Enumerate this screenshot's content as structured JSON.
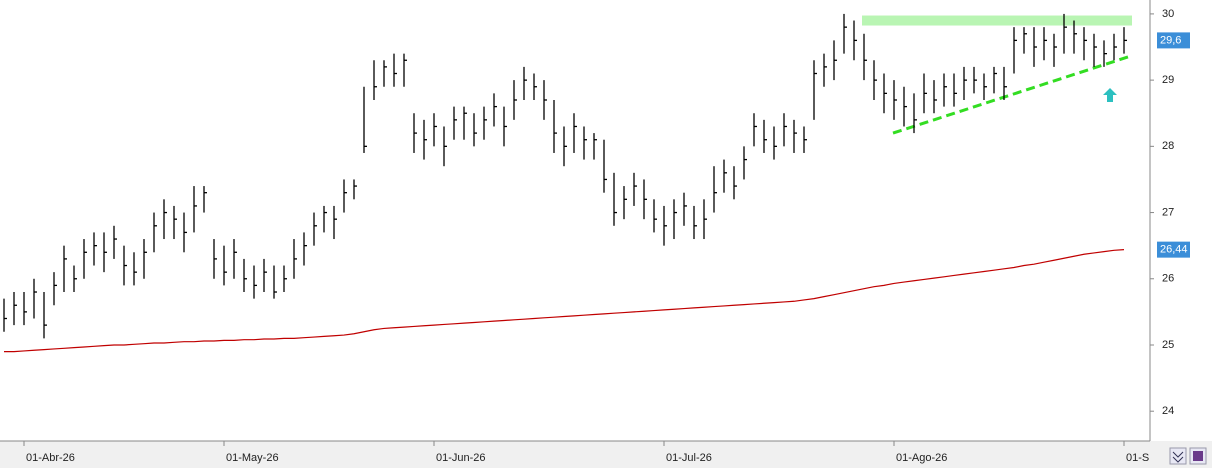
{
  "chart_data": {
    "type": "ohlc",
    "categories": [
      null,
      null,
      "01-Abr-26",
      null,
      null,
      null,
      null,
      null,
      null,
      null,
      null,
      null,
      null,
      null,
      null,
      null,
      null,
      null,
      null,
      null,
      null,
      null,
      "01-May-26",
      null,
      null,
      null,
      null,
      null,
      null,
      null,
      null,
      null,
      null,
      null,
      null,
      null,
      null,
      null,
      null,
      null,
      null,
      null,
      null,
      "01-Jun-26",
      null,
      null,
      null,
      null,
      null,
      null,
      null,
      null,
      null,
      null,
      null,
      null,
      null,
      null,
      null,
      null,
      null,
      null,
      null,
      null,
      null,
      null,
      "01-Jul-26",
      null,
      null,
      null,
      null,
      null,
      null,
      null,
      null,
      null,
      null,
      null,
      null,
      null,
      null,
      null,
      null,
      null,
      null,
      null,
      null,
      null,
      null,
      "01-Ago-26",
      null,
      null,
      null,
      null,
      null,
      null,
      null,
      null,
      null,
      null,
      null,
      null,
      null,
      null,
      null,
      null,
      null,
      null,
      null,
      null,
      null,
      null,
      "01-S"
    ],
    "high": [
      25.7,
      25.8,
      25.8,
      26.0,
      25.8,
      26.1,
      26.5,
      26.2,
      26.6,
      26.7,
      26.7,
      26.8,
      26.5,
      26.4,
      26.6,
      27.0,
      27.2,
      27.1,
      27.0,
      27.4,
      27.4,
      26.6,
      26.5,
      26.6,
      26.3,
      26.2,
      26.3,
      26.2,
      26.2,
      26.6,
      26.7,
      27.0,
      27.1,
      27.1,
      27.5,
      27.5,
      28.9,
      29.3,
      29.3,
      29.4,
      29.4,
      28.5,
      28.4,
      28.5,
      28.3,
      28.6,
      28.6,
      28.5,
      28.6,
      28.8,
      28.6,
      29.0,
      29.2,
      29.1,
      29.0,
      28.7,
      28.3,
      28.5,
      28.3,
      28.2,
      28.1,
      27.6,
      27.4,
      27.6,
      27.5,
      27.2,
      27.1,
      27.2,
      27.3,
      27.1,
      27.2,
      27.7,
      27.8,
      27.7,
      28.0,
      28.5,
      28.4,
      28.3,
      28.5,
      28.4,
      28.3,
      29.3,
      29.4,
      29.6,
      30.0,
      29.9,
      29.7,
      29.3,
      29.1,
      29.0,
      28.9,
      28.8,
      29.1,
      29.0,
      29.1,
      29.1,
      29.2,
      29.2,
      29.1,
      29.2,
      29.2,
      29.8,
      29.8,
      29.8,
      29.8,
      29.7,
      30.0,
      29.9,
      29.8,
      29.7,
      29.6,
      29.7,
      29.8
    ],
    "low": [
      25.2,
      25.3,
      25.3,
      25.4,
      25.1,
      25.6,
      25.8,
      25.8,
      26.0,
      26.2,
      26.1,
      26.3,
      25.9,
      25.9,
      26.0,
      26.4,
      26.6,
      26.6,
      26.4,
      26.7,
      27.0,
      26.0,
      25.9,
      26.0,
      25.8,
      25.7,
      25.8,
      25.7,
      25.8,
      26.0,
      26.2,
      26.5,
      26.7,
      26.6,
      27.0,
      27.2,
      27.9,
      28.7,
      28.9,
      28.9,
      28.9,
      27.9,
      27.8,
      28.0,
      27.7,
      28.1,
      28.1,
      28.0,
      28.1,
      28.3,
      28.0,
      28.4,
      28.7,
      28.7,
      28.4,
      27.9,
      27.7,
      27.9,
      27.8,
      27.8,
      27.3,
      26.8,
      26.9,
      27.1,
      26.9,
      26.7,
      26.5,
      26.6,
      26.8,
      26.6,
      26.6,
      27.0,
      27.3,
      27.2,
      27.5,
      28.0,
      27.9,
      27.8,
      28.0,
      27.9,
      27.9,
      28.4,
      28.9,
      29.0,
      29.4,
      29.3,
      29.0,
      28.7,
      28.5,
      28.4,
      28.3,
      28.2,
      28.5,
      28.5,
      28.6,
      28.6,
      28.7,
      28.8,
      28.7,
      28.8,
      28.7,
      29.1,
      29.4,
      29.2,
      29.3,
      29.2,
      29.4,
      29.4,
      29.3,
      29.2,
      29.2,
      29.3,
      29.4
    ],
    "close": [
      25.4,
      25.6,
      25.5,
      25.8,
      25.3,
      25.9,
      26.3,
      26.0,
      26.4,
      26.5,
      26.4,
      26.6,
      26.2,
      26.1,
      26.4,
      26.8,
      27.0,
      26.9,
      26.7,
      27.1,
      27.3,
      26.3,
      26.1,
      26.4,
      26.0,
      25.9,
      26.1,
      25.8,
      26.0,
      26.3,
      26.5,
      26.8,
      27.0,
      26.9,
      27.3,
      27.4,
      28.0,
      28.9,
      29.2,
      29.1,
      29.3,
      28.2,
      28.1,
      28.3,
      28.0,
      28.4,
      28.5,
      28.2,
      28.4,
      28.6,
      28.3,
      28.7,
      29.0,
      28.9,
      28.7,
      28.2,
      28.0,
      28.3,
      28.1,
      28.1,
      27.5,
      27.0,
      27.2,
      27.4,
      27.2,
      26.9,
      26.8,
      27.0,
      27.1,
      26.8,
      26.9,
      27.3,
      27.6,
      27.4,
      27.8,
      28.3,
      28.1,
      28.0,
      28.3,
      28.2,
      28.1,
      29.1,
      29.2,
      29.3,
      29.8,
      29.6,
      29.3,
      29.0,
      28.8,
      28.7,
      28.6,
      28.4,
      28.8,
      28.7,
      28.9,
      28.8,
      29.0,
      29.0,
      28.9,
      29.1,
      28.9,
      29.6,
      29.7,
      29.5,
      29.6,
      29.5,
      29.8,
      29.7,
      29.6,
      29.5,
      29.4,
      29.5,
      29.6
    ],
    "color": "#000000",
    "last_label": "29,6",
    "label_color": "#3b8ed8",
    "overlay": {
      "type": "line",
      "color": "#c00000",
      "last_label": "26,44",
      "values": [
        24.9,
        24.9,
        24.91,
        24.92,
        24.93,
        24.94,
        24.95,
        24.96,
        24.97,
        24.98,
        24.99,
        25.0,
        25.0,
        25.01,
        25.02,
        25.03,
        25.03,
        25.04,
        25.05,
        25.05,
        25.06,
        25.06,
        25.07,
        25.07,
        25.08,
        25.08,
        25.09,
        25.09,
        25.1,
        25.1,
        25.11,
        25.12,
        25.13,
        25.14,
        25.15,
        25.17,
        25.2,
        25.23,
        25.25,
        25.26,
        25.27,
        25.28,
        25.29,
        25.3,
        25.31,
        25.32,
        25.33,
        25.34,
        25.35,
        25.36,
        25.37,
        25.38,
        25.39,
        25.4,
        25.41,
        25.42,
        25.43,
        25.44,
        25.45,
        25.46,
        25.47,
        25.48,
        25.49,
        25.5,
        25.51,
        25.52,
        25.53,
        25.54,
        25.55,
        25.56,
        25.57,
        25.58,
        25.59,
        25.6,
        25.61,
        25.62,
        25.63,
        25.64,
        25.65,
        25.66,
        25.68,
        25.7,
        25.73,
        25.76,
        25.79,
        25.82,
        25.85,
        25.88,
        25.9,
        25.93,
        25.95,
        25.97,
        25.99,
        26.01,
        26.03,
        26.05,
        26.07,
        26.09,
        26.11,
        26.13,
        26.15,
        26.17,
        26.2,
        26.22,
        26.25,
        26.28,
        26.31,
        26.34,
        26.37,
        26.39,
        26.41,
        26.43,
        26.44
      ]
    },
    "resistance_level": 29.9,
    "resistance_color": "#b9f5b3",
    "trendline": [
      28.2,
      29.35
    ],
    "trendline_color": "#33dd22",
    "ylim": [
      23.55,
      30.21
    ],
    "yticks": [
      24,
      25,
      26,
      27,
      28,
      29,
      30
    ],
    "grid": false
  }
}
